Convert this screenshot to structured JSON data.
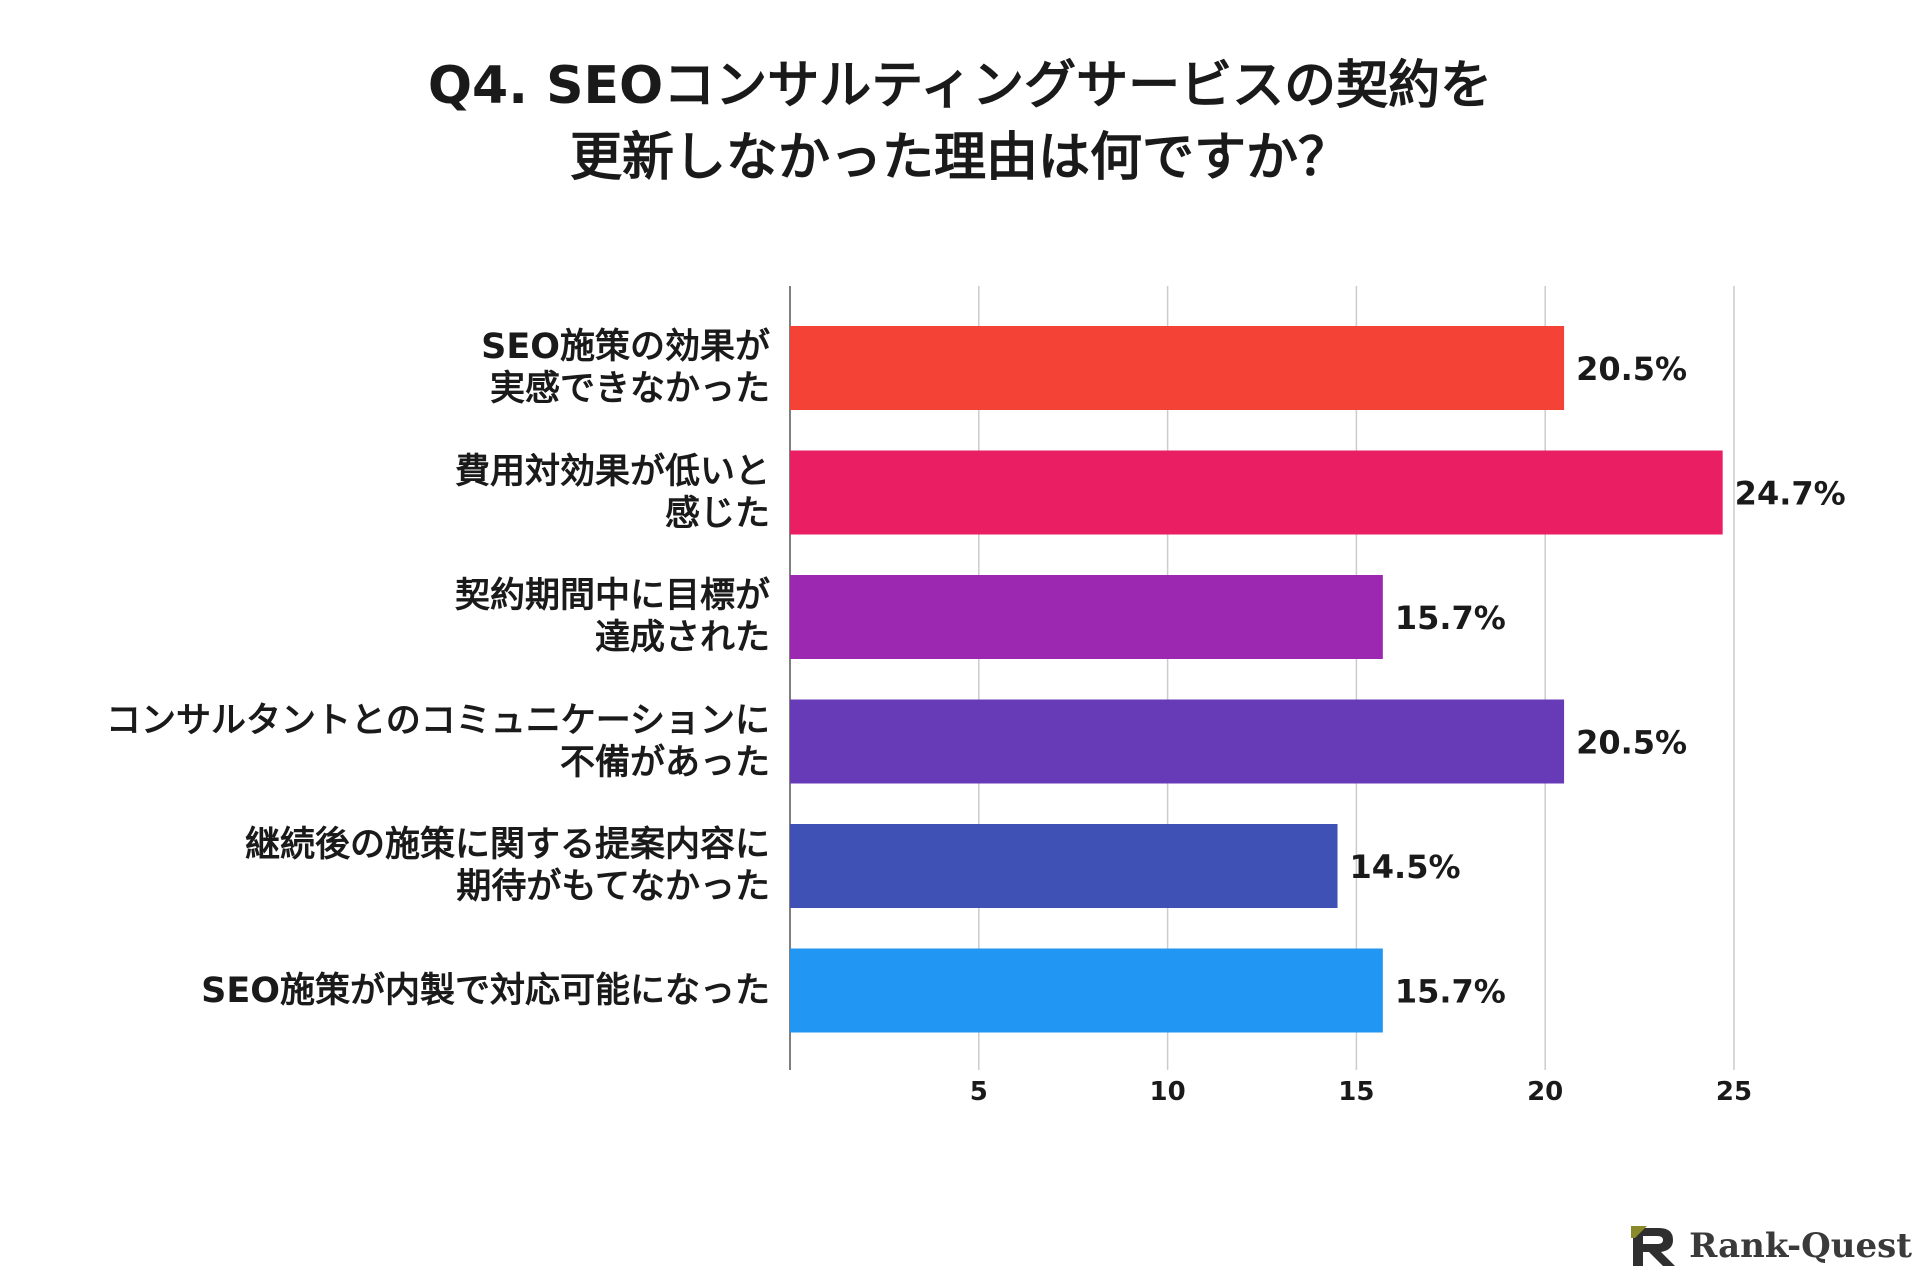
{
  "title": {
    "line1": "Q4. SEOコンサルティングサービスの契約を",
    "line2": "更新しなかった理由は何ですか？"
  },
  "chart_data": {
    "type": "bar",
    "orientation": "horizontal",
    "categories": [
      [
        "SEO施策の効果が",
        "実感できなかった"
      ],
      [
        "費用対効果が低いと",
        "感じた"
      ],
      [
        "契約期間中に目標が",
        "達成された"
      ],
      [
        "コンサルタントとのコミュニケーションに",
        "不備があった"
      ],
      [
        "継続後の施策に関する提案内容に",
        "期待がもてなかった"
      ],
      [
        "SEO施策が内製で対応可能になった"
      ]
    ],
    "values": [
      20.5,
      24.7,
      15.7,
      20.5,
      14.5,
      15.7
    ],
    "data_labels": [
      "20.5%",
      "24.7%",
      "15.7%",
      "20.5%",
      "14.5%",
      "15.7%"
    ],
    "colors": [
      "#F44336",
      "#E91E63",
      "#9C27B0",
      "#673AB7",
      "#3F51B5",
      "#2196F3"
    ],
    "xlim": [
      0,
      25
    ],
    "xticks": [
      "5",
      "10",
      "15",
      "20",
      "25"
    ],
    "grid": true
  },
  "brand": {
    "name": "Rank-Quest",
    "icon": "rank-quest-logo-icon"
  }
}
